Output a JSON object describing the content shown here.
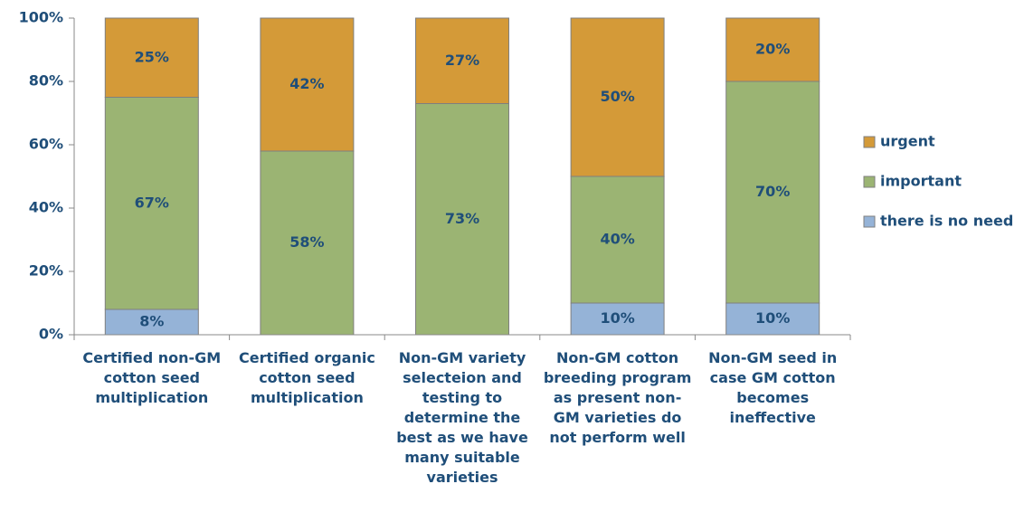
{
  "chart_data": {
    "type": "stacked-bar",
    "categories": [
      "Certified non-GM cotton seed multiplication",
      "Certified organic cotton seed multiplication",
      "Non-GM variety selecteion and testing to determine the best as we have many suitable varieties",
      "Non-GM cotton breeding program as present non-GM varieties do not perform well",
      "Non-GM seed in case GM cotton becomes ineffective"
    ],
    "series": [
      {
        "name": "there is no need",
        "color": "#95b3d7",
        "values": [
          8,
          0,
          0,
          10,
          10
        ],
        "value_labels": [
          "8%",
          null,
          null,
          "10%",
          "10%"
        ]
      },
      {
        "name": "important",
        "color": "#9bb473",
        "values": [
          67,
          58,
          73,
          40,
          70
        ],
        "value_labels": [
          "67%",
          "58%",
          "73%",
          "40%",
          "70%"
        ]
      },
      {
        "name": "urgent",
        "color": "#d49a38",
        "values": [
          25,
          42,
          27,
          50,
          20
        ],
        "value_labels": [
          "25%",
          "42%",
          "27%",
          "50%",
          "20%"
        ]
      }
    ],
    "ylim": [
      0,
      100
    ],
    "yticks": [
      {
        "value": 0,
        "label": "0%"
      },
      {
        "value": 20,
        "label": "20%"
      },
      {
        "value": 40,
        "label": "40%"
      },
      {
        "value": 60,
        "label": "60%"
      },
      {
        "value": 80,
        "label": "80%"
      },
      {
        "value": 100,
        "label": "100%"
      }
    ],
    "legend": "right"
  }
}
